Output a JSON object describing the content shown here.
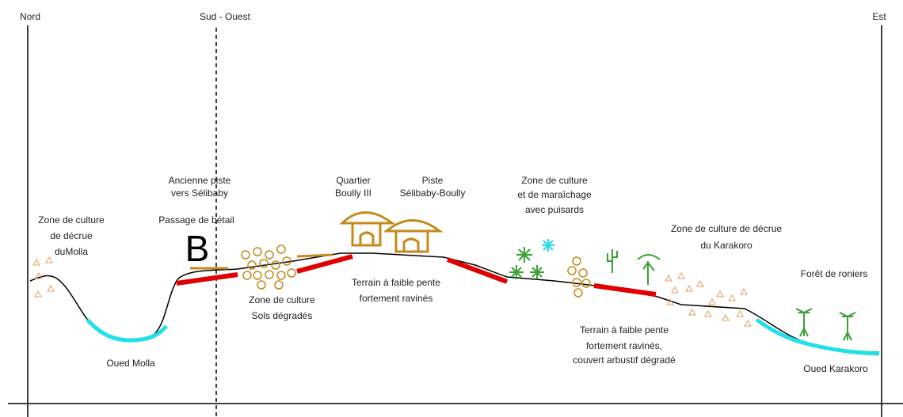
{
  "axes": [
    {
      "label": "Nord"
    },
    {
      "label": "Sud - Ouest"
    },
    {
      "label": "Est"
    }
  ],
  "marker": "B",
  "labels": [
    {
      "lines": [
        "Ancienne piste",
        "vers Sélibaby"
      ]
    },
    {
      "lines": [
        "Passage de bétail"
      ]
    },
    {
      "lines": [
        "Zone de culture",
        "de décrue",
        "duMolla"
      ]
    },
    {
      "lines": [
        "Quartier",
        "Boully III"
      ]
    },
    {
      "lines": [
        "Piste",
        "Sélibaby-Boully"
      ]
    },
    {
      "lines": [
        "Zone de culture",
        "et de maraîchage",
        "avec puisards"
      ]
    },
    {
      "lines": [
        "Zone de culture de décrue",
        "du Karakoro"
      ]
    },
    {
      "lines": [
        "Forêt de roniers"
      ]
    },
    {
      "lines": [
        "Zone de culture",
        "Sols dégradés"
      ]
    },
    {
      "lines": [
        "Terrain à faible pente",
        "fortement ravinés"
      ]
    },
    {
      "lines": [
        "Terrain à faible pente",
        "fortement ravinés,",
        "couvert arbustif dégradé"
      ]
    },
    {
      "lines": [
        "Oued Molla"
      ]
    },
    {
      "lines": [
        "Oued Karakoro"
      ]
    }
  ]
}
